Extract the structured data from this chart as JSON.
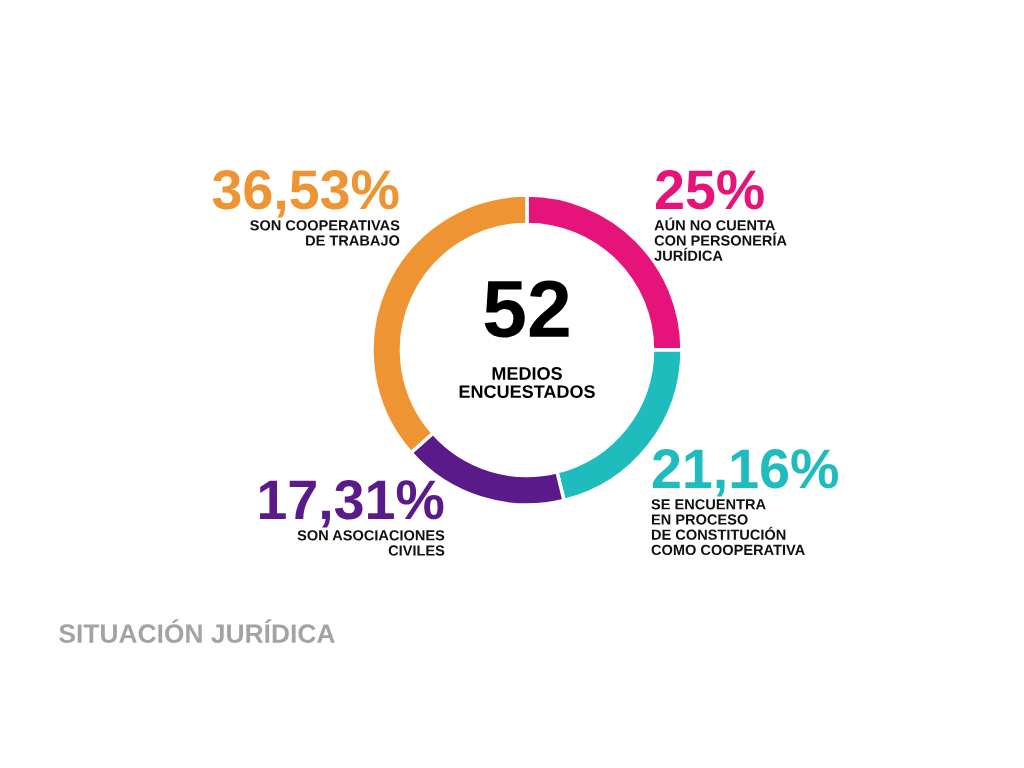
{
  "chart_data": {
    "type": "donut",
    "title": "SITUACIÓN JURÍDICA",
    "categories": [
      "AÚN NO CUENTA\nCON PERSONERÍA\nJURÍDICA",
      "SE ENCUENTRA\nEN PROCESO\nDE CONSTITUCIÓN\nCOMO COOPERATIVA",
      "SON ASOCIACIONES\nCIVILES",
      "SON COOPERATIVAS\nDE TRABAJO"
    ],
    "values": [
      25,
      21.16,
      17.31,
      36.53
    ],
    "colors": [
      "#e6137b",
      "#1fbcbd",
      "#5a1a8a",
      "#ee9432"
    ],
    "value_labels": [
      "25%",
      "21,16%",
      "17,31%",
      "36,53%"
    ],
    "annotations": [
      "52",
      "MEDIOS\nENCUESTADOS"
    ]
  }
}
